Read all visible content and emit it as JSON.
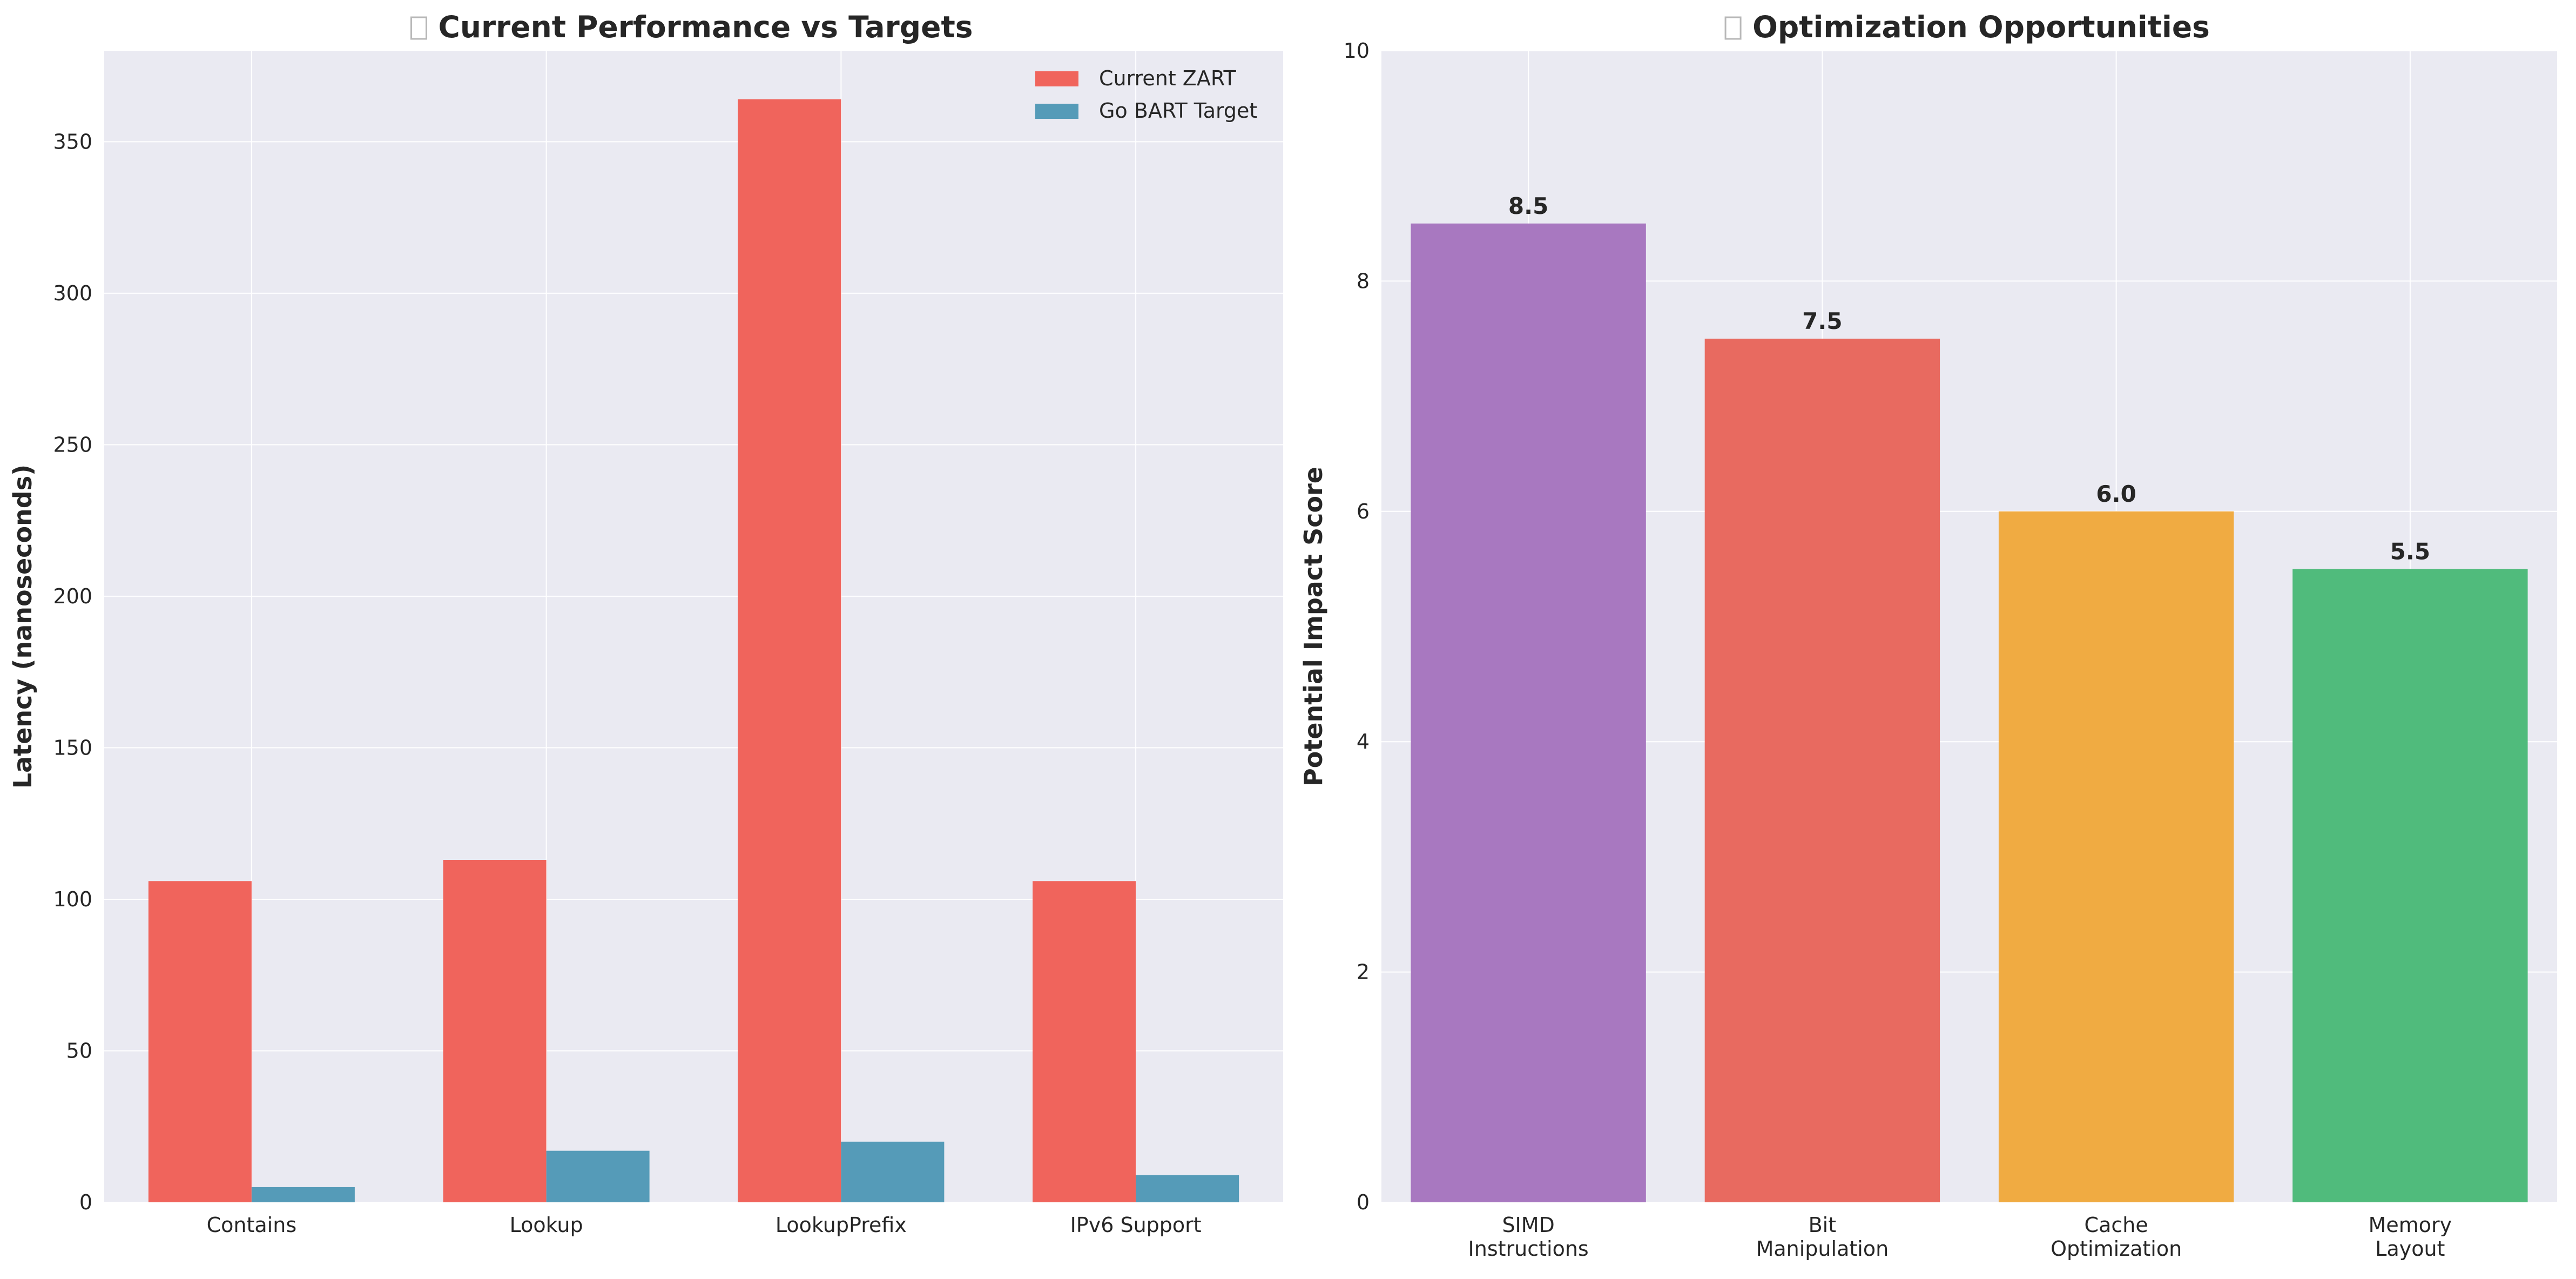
{
  "chart_data": [
    {
      "type": "bar",
      "title": "Current Performance vs Targets",
      "title_icon": "missing-glyph-icon",
      "xlabel": "",
      "ylabel": "Latency (nanoseconds)",
      "categories": [
        "Contains",
        "Lookup",
        "LookupPrefix",
        "IPv6 Support"
      ],
      "series": [
        {
          "name": "Current ZART",
          "values": [
            106,
            113,
            364,
            106
          ],
          "color": "#f0645c"
        },
        {
          "name": "Go BART Target",
          "values": [
            5,
            17,
            20,
            9
          ],
          "color": "#559bb8"
        }
      ],
      "ylim": [
        0,
        380
      ],
      "yticks": [
        0,
        50,
        100,
        150,
        200,
        250,
        300,
        350
      ],
      "ytick_labels": [
        "0",
        "50",
        "100",
        "150",
        "200",
        "250",
        "300",
        "350"
      ],
      "legend_position": "top-right",
      "grid": true,
      "background": "#eaeaf2"
    },
    {
      "type": "bar",
      "title": "Optimization Opportunities",
      "title_icon": "missing-glyph-icon",
      "xlabel": "",
      "ylabel": "Potential Impact Score",
      "categories": [
        "SIMD\nInstructions",
        "Bit\nManipulation",
        "Cache\nOptimization",
        "Memory\nLayout"
      ],
      "values": [
        8.5,
        7.5,
        6.0,
        5.5
      ],
      "value_labels": [
        "8.5",
        "7.5",
        "6.0",
        "5.5"
      ],
      "colors": [
        "#a878c0",
        "#e86a60",
        "#f0ab42",
        "#50bb7c"
      ],
      "ylim": [
        0,
        10
      ],
      "yticks": [
        0,
        2,
        4,
        6,
        8,
        10
      ],
      "ytick_labels": [
        "0",
        "2",
        "4",
        "6",
        "8",
        "10"
      ],
      "grid": true,
      "background": "#eaeaf2"
    }
  ]
}
